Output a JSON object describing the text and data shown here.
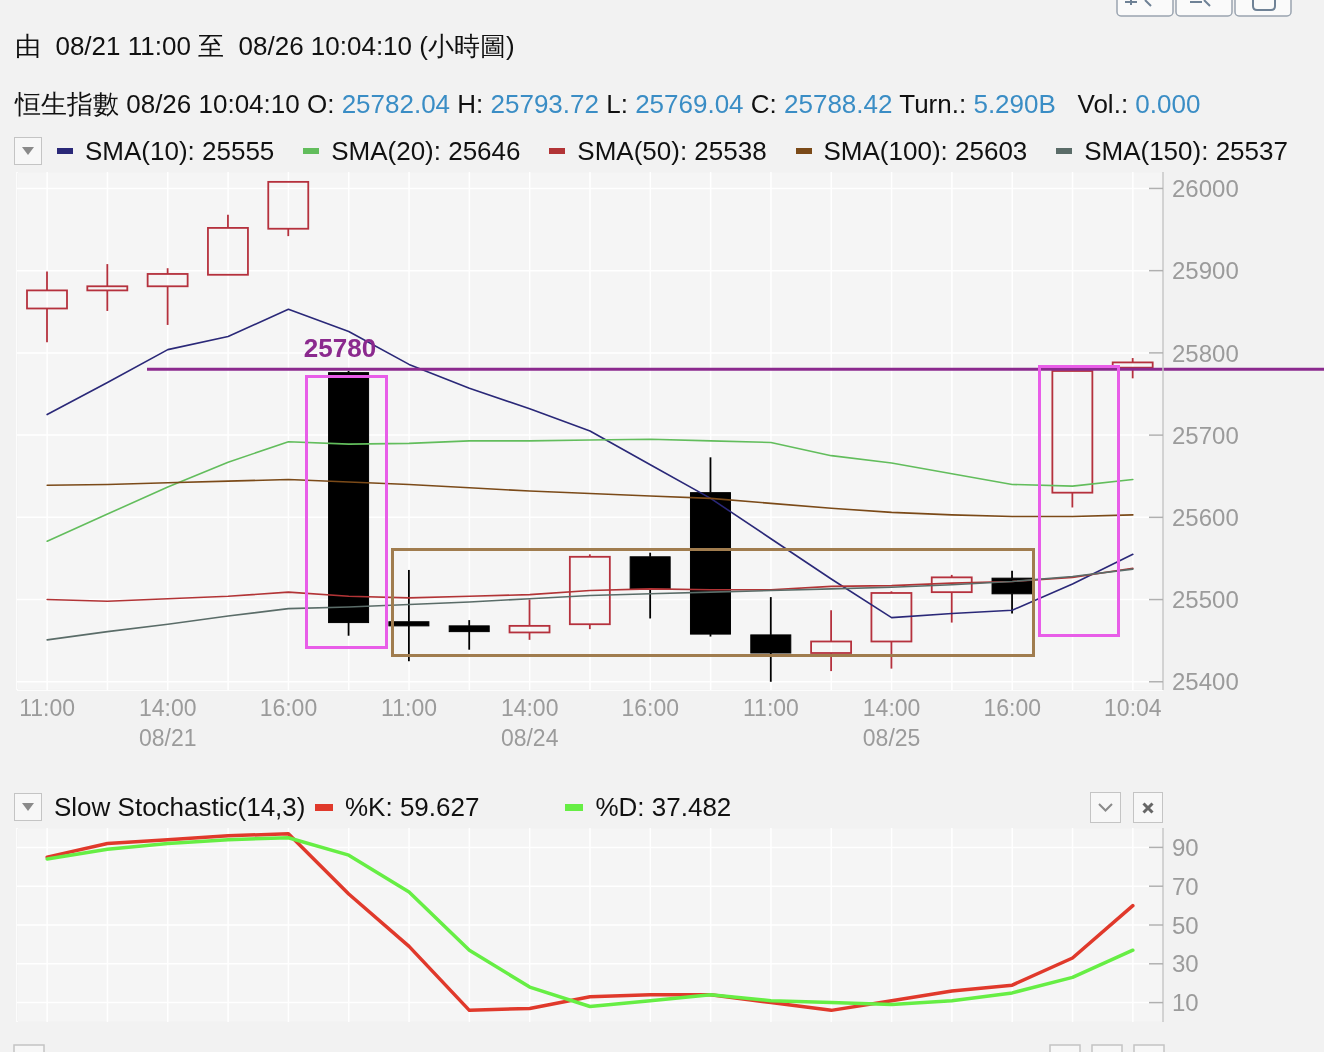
{
  "chart_data": [
    {
      "type": "candlestick",
      "title": "由  08/21 11:00 至  08/26 10:04:10 (小時圖)",
      "subtitle": "恒生指數 08/26 10:04:10 O: 25782.04 H: 25793.72 L: 25769.04 C: 25788.42 Turn.: 5.290B   Vol.: 0.000",
      "categories": [
        "11:00",
        null,
        "14:00\n08/21",
        null,
        "16:00",
        null,
        "11:00",
        null,
        "14:00\n08/24",
        null,
        "16:00",
        null,
        "11:00",
        null,
        "14:00\n08/25",
        null,
        "16:00",
        null,
        "10:04"
      ],
      "ohlc": [
        [
          25854,
          25899,
          25813,
          25876
        ],
        [
          25876,
          25908,
          25851,
          25881
        ],
        [
          25881,
          25903,
          25834,
          25896
        ],
        [
          25895,
          25968,
          25895,
          25952
        ],
        [
          25951,
          26009,
          25942,
          26008
        ],
        [
          25776,
          25778,
          25456,
          25472
        ],
        [
          25473,
          25536,
          25425,
          25468
        ],
        [
          25468,
          25475,
          25439,
          25461
        ],
        [
          25460,
          25500,
          25451,
          25468
        ],
        [
          25470,
          25555,
          25464,
          25552
        ],
        [
          25552,
          25557,
          25477,
          25513
        ],
        [
          25630,
          25673,
          25455,
          25458
        ],
        [
          25457,
          25503,
          25400,
          25435
        ],
        [
          25435,
          25487,
          25413,
          25449
        ],
        [
          25449,
          25510,
          25416,
          25508
        ],
        [
          25509,
          25530,
          25472,
          25527
        ],
        [
          25526,
          25535,
          25483,
          25507
        ],
        [
          25630,
          25778,
          25612,
          25778
        ],
        [
          25782.04,
          25793.72,
          25769.04,
          25788.42
        ]
      ],
      "colors": [
        "#b5313d",
        "#b5313d",
        "#b5313d",
        "#b5313d",
        "#b5313d",
        "#000000",
        "#000000",
        "#000000",
        "#b5313d",
        "#b5313d",
        "#000000",
        "#000000",
        "#000000",
        "#b5313d",
        "#b5313d",
        "#b5313d",
        "#000000",
        "#b5313d",
        "#b5313d"
      ],
      "series": [
        {
          "type": "line",
          "name": "SMA(10): 25555",
          "color": "#2a2878",
          "values": [
            25725,
            25764,
            25804,
            25820,
            25853,
            25826,
            25786,
            25757,
            25732,
            25705,
            25664,
            25623,
            25574,
            25525,
            25478,
            25483,
            25487,
            25519,
            25555
          ]
        },
        {
          "type": "line",
          "name": "SMA(20): 25646",
          "color": "#62bd5c",
          "values": [
            25571,
            25604,
            25637,
            25667,
            25692,
            25689,
            25690,
            25693,
            25693,
            25694,
            25695,
            25693,
            25691,
            25675,
            25666,
            25653,
            25640,
            25638,
            25646
          ]
        },
        {
          "type": "line",
          "name": "SMA(50): 25538",
          "color": "#b23436",
          "values": [
            25500,
            25498,
            25501,
            25504,
            25509,
            25504,
            25502,
            25504,
            25506,
            25511,
            25513,
            25512,
            25512,
            25516,
            25517,
            25520,
            25522,
            25527,
            25538
          ]
        },
        {
          "type": "line",
          "name": "SMA(100): 25603",
          "color": "#7b4a18",
          "values": [
            25639,
            25640,
            25642,
            25644,
            25646,
            25643,
            25640,
            25636,
            25632,
            25629,
            25626,
            25623,
            25617,
            25611,
            25606,
            25603,
            25601,
            25601,
            25603
          ]
        },
        {
          "type": "line",
          "name": "SMA(150): 25537",
          "color": "#5a6c68",
          "values": [
            25451,
            25461,
            25470,
            25480,
            25489,
            25491,
            25494,
            25497,
            25501,
            25505,
            25507,
            25509,
            25511,
            25513,
            25515,
            25518,
            25522,
            25528,
            25537
          ]
        }
      ],
      "ylim": [
        25390,
        26020
      ],
      "yticks": [
        25400,
        25500,
        25600,
        25700,
        25800,
        25900,
        26000
      ],
      "grid": true,
      "legend": "top",
      "ref_lines": [
        {
          "axis": "y",
          "value": 25780,
          "label": "25780",
          "color": "#8b2a8e"
        }
      ]
    },
    {
      "type": "line",
      "title": "Slow Stochastic(14,3)",
      "categories": [
        null,
        null,
        null,
        null,
        null,
        null,
        null,
        null,
        null,
        null,
        null,
        null,
        null,
        null,
        null,
        null,
        null,
        null,
        null
      ],
      "series": [
        {
          "name": "%K: 59.627",
          "color": "#e0392b",
          "values": [
            85,
            92,
            94,
            96,
            97,
            66,
            39,
            6,
            7,
            13,
            14,
            14,
            10,
            6,
            11,
            16,
            19,
            33,
            60
          ]
        },
        {
          "name": "%D: 37.482",
          "color": "#66ee44",
          "values": [
            84,
            89,
            92,
            94,
            95,
            86,
            67,
            37,
            18,
            8,
            11,
            14,
            11,
            10,
            9,
            11,
            15,
            23,
            37
          ]
        }
      ],
      "ylim": [
        0,
        100
      ],
      "yticks": [
        10,
        30,
        50,
        70,
        90
      ],
      "grid": true,
      "legend": "top left",
      "tick_labels": "y"
    }
  ]
}
